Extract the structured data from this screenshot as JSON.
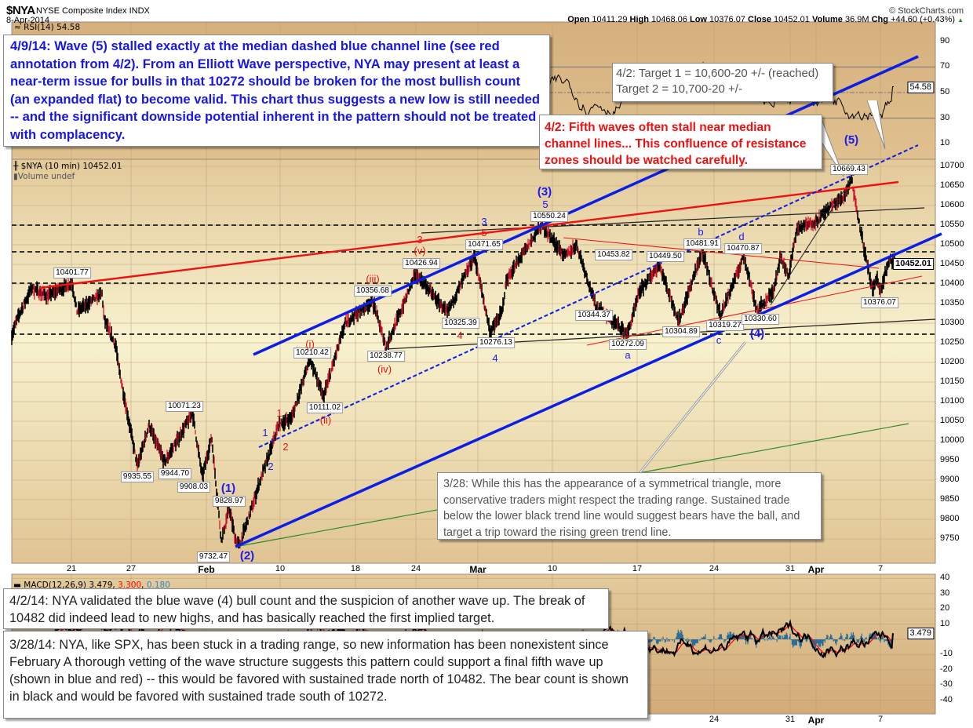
{
  "header": {
    "symbol": "$NYA",
    "name": "NYSE Composite Index INDX",
    "date": "8-Apr-2014",
    "copyright": "© StockCharts.com",
    "open_label": "Open",
    "open": "10411.29",
    "high_label": "High",
    "high": "10468.06",
    "low_label": "Low",
    "low": "10376.07",
    "close_label": "Close",
    "close": "10452.01",
    "volume_label": "Volume",
    "volume": "36.9M",
    "chg_label": "Chg",
    "chg": "+44.60 (+0.43%)",
    "chg_icon": "up-triangle-icon"
  },
  "colors": {
    "wave_blue": "#1a1aee",
    "wave_red": "#ee1111",
    "channel_blue": "#0a1ee6",
    "trend_red": "#ee1111",
    "trend_green": "#2a8a2a",
    "macd_line": "#000000",
    "macd_signal": "#ff0000",
    "macd_hist": "#2a6e99"
  },
  "annotations": {
    "box_2014_04_09": "4/9/14:  Wave (5) stalled exactly at the median dashed blue channel line (see red annotation from 4/2).  From an Elliott Wave perspective, NYA may present at least a near-term issue for bulls in that 10272 should be broken for the most bullish count (an expanded flat) to become valid.  This chart thus suggests a new low is still needed -- and the significant downside potential inherent in the pattern should not be treated with complacency.",
    "targets_line1": "4/2: Target 1 = 10,600-20 +/- (reached)",
    "targets_line2": "Target 2 = 10,700-20 +/-",
    "fifth_wave_note": "4/2: Fifth waves often stall near median channel lines...  This confluence of resistance zones should be watched carefully.",
    "triangle_note": "3/28: While this has the appearance of a symmetrical triangle, more conservative traders might respect the trading range.  Sustained trade below the lower black trend line would suggest bears have the ball, and target a trip toward the rising green trend line.",
    "box_2014_04_02": "4/2/14:  NYA validated the blue wave (4) bull count and the suspicion of another wave up.  The break of 10482 did indeed lead to new highs, and has basically reached the first implied target.",
    "box_2014_03_28": "3/28/14:  NYA, like SPX, has been stuck in a trading range, so new information has been nonexistent since February  A thorough vetting of the wave structure suggests this pattern could support a final fifth wave up (shown in blue and red) -- this would be favored with sustained trade north of 10482.  The bear count is shown in black and would be favored with sustained trade south of 10272."
  },
  "chart_data": [
    {
      "type": "line",
      "panel": "RSI",
      "title": "RSI(14) 54.58",
      "indicator": "RSI(14)",
      "last_value": "54.58",
      "yticks": [
        "90",
        "70",
        "50",
        "30",
        "10"
      ],
      "ylim": [
        0,
        100
      ],
      "reference_lines": [
        70,
        50,
        30
      ]
    },
    {
      "type": "line",
      "panel": "price",
      "title": "$NYA (10 min) 10452.01",
      "volume_label": "Volume undef",
      "last_value": "10452.01",
      "ylim": [
        9688,
        10718
      ],
      "yticks": [
        "10700",
        "10650",
        "10600",
        "10550",
        "10500",
        "10450",
        "10400",
        "10350",
        "10300",
        "10250",
        "10200",
        "10150",
        "10100",
        "10050",
        "10000",
        "9950",
        "9900",
        "9850",
        "9800",
        "9750"
      ],
      "xticks": [
        {
          "label": "21",
          "date": "2014-01-21",
          "bold": false
        },
        {
          "label": "27",
          "date": "2014-01-27",
          "bold": false
        },
        {
          "label": "Feb",
          "date": "2014-02-03",
          "bold": true
        },
        {
          "label": "10",
          "date": "2014-02-10",
          "bold": false
        },
        {
          "label": "18",
          "date": "2014-02-18",
          "bold": false
        },
        {
          "label": "24",
          "date": "2014-02-24",
          "bold": false
        },
        {
          "label": "Mar",
          "date": "2014-03-03",
          "bold": true
        },
        {
          "label": "10",
          "date": "2014-03-10",
          "bold": false
        },
        {
          "label": "17",
          "date": "2014-03-17",
          "bold": false
        },
        {
          "label": "24",
          "date": "2014-03-24",
          "bold": false
        },
        {
          "label": "31",
          "date": "2014-03-31",
          "bold": false
        },
        {
          "label": "Apr",
          "date": "2014-04-01",
          "bold": true
        },
        {
          "label": "7",
          "date": "2014-04-07",
          "bold": false
        }
      ],
      "grid": true,
      "horizontal_levels": [
        10550,
        10482,
        10402,
        10272
      ],
      "series": [
        [
          "2014-01-15T00:00",
          10270
        ],
        [
          "2014-01-15T13:00",
          10310
        ],
        [
          "2014-01-17T00:00",
          10390
        ],
        [
          "2014-01-18T12:00",
          10370
        ],
        [
          "2014-01-21T02:00",
          10401.77
        ],
        [
          "2014-01-21T13:00",
          10330
        ],
        [
          "2014-01-24T02:00",
          10375
        ],
        [
          "2014-01-24T07:00",
          10310
        ],
        [
          "2014-01-25T12:00",
          10240
        ],
        [
          "2014-01-25T16:00",
          10200
        ],
        [
          "2014-01-27T14:00",
          9935.55
        ],
        [
          "2014-01-28T16:00",
          10040
        ],
        [
          "2014-01-30T03:00",
          9944.7
        ],
        [
          "2014-02-01T17:00",
          10071.23
        ],
        [
          "2014-02-02T15:00",
          9908.03
        ],
        [
          "2014-02-03T12:00",
          10010
        ],
        [
          "2014-02-04T10:00",
          9745
        ],
        [
          "2014-02-05T04:00",
          9828.97
        ],
        [
          "2014-02-05T18:00",
          9750
        ],
        [
          "2014-02-06T03:00",
          9732.47
        ],
        [
          "2014-02-07T02:00",
          9810
        ],
        [
          "2014-02-08T00:00",
          9890
        ],
        [
          "2014-02-09T02:00",
          9975
        ],
        [
          "2014-02-09T20:00",
          10040
        ],
        [
          "2014-02-11T06:00",
          10060
        ],
        [
          "2014-02-13T04:00",
          10210.42
        ],
        [
          "2014-02-14T14:00",
          10111.02
        ],
        [
          "2014-02-16T22:00",
          10300
        ],
        [
          "2014-02-19T17:00",
          10356.68
        ],
        [
          "2014-02-21T01:00",
          10238.77
        ],
        [
          "2014-02-24T00:00",
          10426.94
        ],
        [
          "2014-02-27T13:00",
          10325.39
        ],
        [
          "2014-03-02T15:00",
          10471.65
        ],
        [
          "2014-03-04T04:00",
          10276.13
        ],
        [
          "2014-03-05T07:00",
          10330
        ],
        [
          "2014-03-05T16:00",
          10410
        ],
        [
          "2014-03-08T23:00",
          10550.24
        ],
        [
          "2014-03-11T01:00",
          10470
        ],
        [
          "2014-03-12T00:00",
          10500
        ],
        [
          "2014-03-13T14:00",
          10344.37
        ],
        [
          "2014-03-15T05:00",
          10300
        ],
        [
          "2014-03-16T05:00",
          10272.09
        ],
        [
          "2014-03-17T05:00",
          10380
        ],
        [
          "2014-03-19T00:00",
          10449.5
        ],
        [
          "2014-03-20T19:00",
          10304.89
        ],
        [
          "2014-03-22T22:00",
          10481.91
        ],
        [
          "2014-03-24T14:00",
          10319.27
        ],
        [
          "2014-03-26T18:00",
          10470.87
        ],
        [
          "2014-03-27T23:00",
          10330.6
        ],
        [
          "2014-03-29T10:00",
          10380
        ],
        [
          "2014-03-30T03:00",
          10470
        ],
        [
          "2014-03-30T21:00",
          10420
        ],
        [
          "2014-03-31T06:00",
          10540
        ],
        [
          "2014-04-01T00:00",
          10560
        ],
        [
          "2014-04-02T11:00",
          10600
        ],
        [
          "2014-04-03T13:00",
          10620
        ],
        [
          "2014-04-04T07:00",
          10669.43
        ],
        [
          "2014-04-05T00:00",
          10560
        ],
        [
          "2014-04-05T18:00",
          10450
        ],
        [
          "2014-04-06T07:00",
          10380
        ],
        [
          "2014-04-06T17:00",
          10420
        ],
        [
          "2014-04-07T00:00",
          10376.07
        ],
        [
          "2014-04-07T08:00",
          10430
        ],
        [
          "2014-04-07T16:00",
          10460
        ],
        [
          "2014-04-08T00:00",
          10452.01
        ]
      ],
      "price_labels": [
        "10401.77",
        "10356.68",
        "10426.94",
        "10471.65",
        "10550.24",
        "10453.82",
        "10449.50",
        "10481.91",
        "10470.87",
        "10210.42",
        "10111.02",
        "10238.77",
        "10325.39",
        "10276.13",
        "10344.37",
        "10272.09",
        "10304.89",
        "10319.27",
        "10330.60",
        "10669.43",
        "10376.07",
        "10071.23",
        "9935.55",
        "9944.70",
        "9908.03",
        "9828.97",
        "9732.47"
      ],
      "wave_labels": [
        "(1)",
        "(2)",
        "1",
        "1",
        "2",
        "2",
        "(i)",
        "(ii)",
        "(iii)",
        "(iv)",
        "3",
        "(v)",
        "3",
        "5",
        "4",
        "4",
        "(3)",
        "5",
        "a",
        "b",
        "c",
        "d",
        "(4)",
        "(5)"
      ]
    },
    {
      "type": "line",
      "panel": "MACD",
      "indicator": "MACD(12,26,9)",
      "macd": "3.479",
      "signal": "3.300",
      "histogram": "0.180",
      "series_names": [
        "MACD",
        "Signal",
        "Histogram"
      ],
      "yticks": [
        "40",
        "30",
        "20",
        "10",
        "",
        "-10",
        "-20",
        "-30",
        "-40"
      ],
      "ylim": [
        -46,
        42
      ]
    }
  ]
}
